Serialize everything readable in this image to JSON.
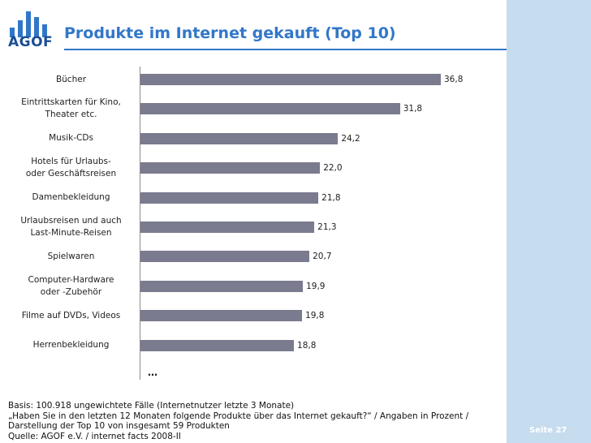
{
  "logo": {
    "text": "AGOF"
  },
  "title": "Produkte im Internet gekauft (Top 10)",
  "chart_data": {
    "type": "bar",
    "orientation": "horizontal",
    "title": "Produkte im Internet gekauft (Top 10)",
    "categories": [
      "Bücher",
      "Eintrittskarten für Kino, Theater etc.",
      "Musik-CDs",
      "Hotels für Urlaubs- oder Geschäftsreisen",
      "Damenbekleidung",
      "Urlaubsreisen und auch Last-Minute-Reisen",
      "Spielwaren",
      "Computer-Hardware oder -Zubehör",
      "Filme auf DVDs, Videos",
      "Herrenbekleidung"
    ],
    "category_lines": [
      [
        "Bücher"
      ],
      [
        "Eintrittskarten für Kino,",
        "Theater etc."
      ],
      [
        "Musik-CDs"
      ],
      [
        "Hotels für Urlaubs-",
        "oder Geschäftsreisen"
      ],
      [
        "Damenbekleidung"
      ],
      [
        "Urlaubsreisen und auch",
        "Last-Minute-Reisen"
      ],
      [
        "Spielwaren"
      ],
      [
        "Computer-Hardware",
        "oder -Zubehör"
      ],
      [
        "Filme auf DVDs, Videos"
      ],
      [
        "Herrenbekleidung"
      ]
    ],
    "values": [
      36.8,
      31.8,
      24.2,
      22.0,
      21.8,
      21.3,
      20.7,
      19.9,
      19.8,
      18.8
    ],
    "value_labels": [
      "36,8",
      "31,8",
      "24,2",
      "22,0",
      "21,8",
      "21,3",
      "20,7",
      "19,9",
      "19,8",
      "18,8"
    ],
    "xlim": [
      0,
      40
    ],
    "continuation": "…",
    "xlabel": "",
    "ylabel": ""
  },
  "footnote": {
    "lines": [
      "Basis: 100.918 ungewichtete Fälle (Internetnutzer letzte 3 Monate)",
      "„Haben Sie in den letzten 12 Monaten folgende Produkte über das Internet gekauft?“ / Angaben in Prozent /",
      "Darstellung der Top 10 von insgesamt 59 Produkten",
      "Quelle: AGOF e.V. / internet facts 2008-II"
    ]
  },
  "page": {
    "label": "Seite 27"
  },
  "colors": {
    "title": "#3277c7",
    "bar": "#7b7b8f",
    "sidebar": "#c6dcef",
    "logo": "#1b4e93"
  }
}
